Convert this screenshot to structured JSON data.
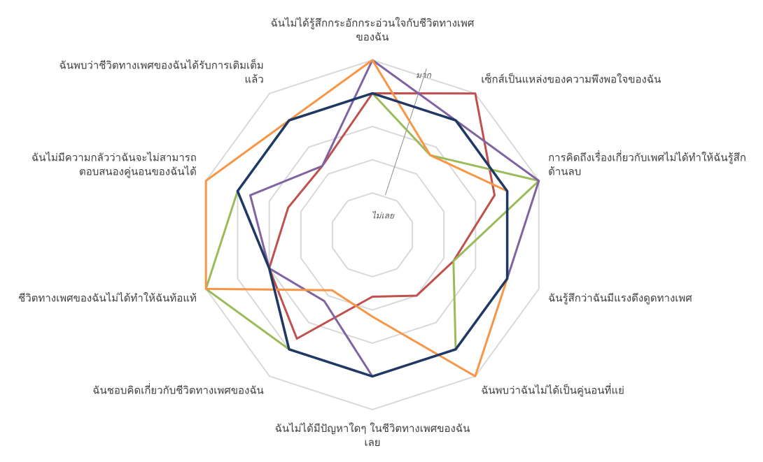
{
  "chart_data": {
    "type": "radar",
    "categories": [
      [
        "ฉันไม่ได้รู้สึกกระอักกระอ่วนใจกับชีวิตทางเพศ",
        "ของฉัน"
      ],
      [
        "เซ็กส์เป็นแหล่งของความพึงพอใจของฉัน"
      ],
      [
        "การคิดถึงเรื่องเกี่ยวกับเพศไม่ได้ทำให้ฉันรู้สึก",
        "ด้านลบ"
      ],
      [
        "ฉันรู้สึกว่าฉันมีแรงดึงดูดทางเพศ"
      ],
      [
        "ฉันพบว่าฉันไม่ได้เป็นคู่นอนที่แย่"
      ],
      [
        "ฉันไม่ได้มีปัญหาใดๆ ในชีวิตทางเพศของฉัน",
        "เลย"
      ],
      [
        "ฉันชอบคิดเกี่ยวกับชีวิตทางเพศของฉัน"
      ],
      [
        "ชีวิตทางเพศของฉันไม่ได้ทำให้ฉันท้อแท้"
      ],
      [
        "ฉันไม่มีความกลัวว่าฉันจะไม่สามารถ",
        "ตอบสนองคู่นอนของฉันได้"
      ],
      [
        "ฉันพบว่าชีวิตทางเพศของฉันได้รับการเติมเต็ม",
        "แล้ว"
      ]
    ],
    "scale_labels": {
      "min": "ไม่เลย",
      "max": "มาก"
    },
    "rlim": [
      0,
      4
    ],
    "grid": true,
    "series": [
      {
        "color": "#C0504D",
        "width": 3,
        "values": [
          3.0,
          4.0,
          2.6,
          1.3,
          1.0,
          0.6,
          2.6,
          2.0,
          1.4,
          1.3
        ]
      },
      {
        "color": "#9BBB59",
        "width": 3,
        "values": [
          3.0,
          1.7,
          4.0,
          1.3,
          3.0,
          3.0,
          3.0,
          4.0,
          3.0,
          3.0
        ]
      },
      {
        "color": "#8064A2",
        "width": 3,
        "values": [
          4.0,
          3.0,
          4.0,
          3.0,
          3.0,
          3.0,
          1.2,
          2.0,
          2.6,
          1.3
        ]
      },
      {
        "color": "#F79646",
        "width": 3,
        "values": [
          4.0,
          1.7,
          3.0,
          3.0,
          4.0,
          1.2,
          0.8,
          4.0,
          4.0,
          3.0
        ]
      },
      {
        "color": "#4BACC6",
        "width": 3,
        "values": [
          3.0,
          3.0,
          3.0,
          3.0,
          3.0,
          3.0,
          3.0,
          2.0,
          3.0,
          3.0
        ]
      },
      {
        "color": "#1F3864",
        "width": 3.5,
        "values": [
          3.0,
          3.0,
          3.0,
          3.0,
          3.0,
          3.0,
          3.0,
          2.0,
          3.0,
          3.0
        ]
      }
    ]
  }
}
